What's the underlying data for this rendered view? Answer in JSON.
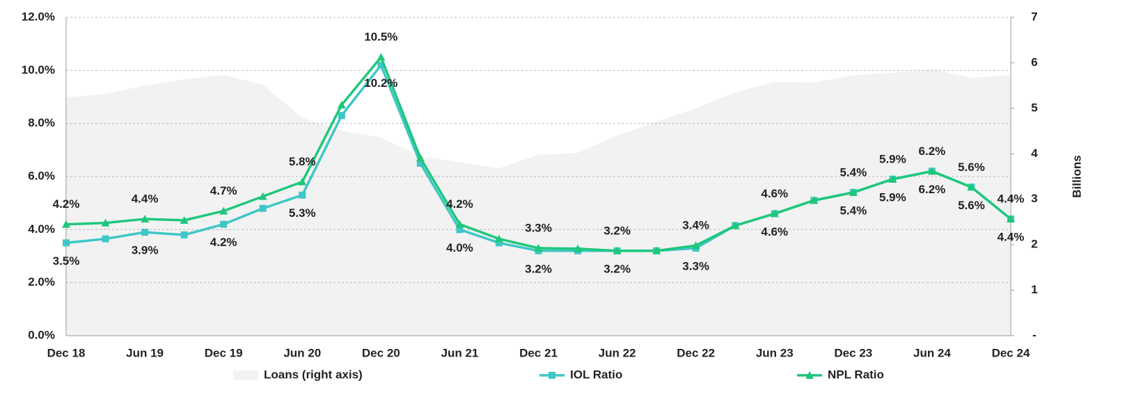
{
  "chart_data": {
    "type": "line",
    "categories": [
      "Dec 18",
      null,
      "Jun 19",
      null,
      "Dec 19",
      null,
      "Jun 20",
      null,
      "Dec 20",
      null,
      "Jun 21",
      null,
      "Dec 21",
      null,
      "Jun 22",
      null,
      "Dec 22",
      null,
      "Jun 23",
      null,
      "Dec 23",
      null,
      "Jun 24",
      null,
      "Dec 24"
    ],
    "series": [
      {
        "name": "Loans (right axis)",
        "type": "area",
        "axis": "y2",
        "color": "#f2f2f2",
        "values": [
          5.24,
          5.32,
          5.5,
          5.64,
          5.73,
          5.52,
          4.79,
          4.51,
          4.36,
          3.94,
          3.82,
          3.68,
          3.98,
          4.02,
          4.4,
          4.71,
          5.0,
          5.35,
          5.58,
          5.57,
          5.73,
          5.78,
          5.86,
          5.67,
          5.73
        ]
      },
      {
        "name": "IOL Ratio",
        "marker": "square",
        "color": "#3fc6c6",
        "values": [
          3.5,
          3.65,
          3.9,
          3.8,
          4.2,
          4.8,
          5.3,
          8.3,
          10.2,
          6.5,
          4.0,
          3.5,
          3.2,
          3.2,
          3.2,
          3.2,
          3.3,
          4.15,
          4.6,
          5.1,
          5.4,
          5.9,
          6.2,
          5.6,
          4.4
        ],
        "value_labels": [
          "3.5%",
          null,
          "3.9%",
          null,
          "4.2%",
          null,
          "5.3%",
          null,
          "10.2%",
          null,
          "4.0%",
          null,
          "3.2%",
          null,
          "3.2%",
          null,
          "3.3%",
          null,
          "4.6%",
          null,
          "5.4%",
          "5.9%",
          "6.2%",
          "5.6%",
          "4.4%"
        ]
      },
      {
        "name": "NPL Ratio",
        "marker": "triangle",
        "color": "#1fc77c",
        "values": [
          4.2,
          4.25,
          4.4,
          4.35,
          4.7,
          5.25,
          5.8,
          8.7,
          10.5,
          6.7,
          4.2,
          3.65,
          3.3,
          3.28,
          3.2,
          3.2,
          3.4,
          4.15,
          4.6,
          5.1,
          5.4,
          5.9,
          6.2,
          5.6,
          4.4
        ],
        "value_labels": [
          "4.2%",
          null,
          "4.4%",
          null,
          "4.7%",
          null,
          "5.8%",
          null,
          "10.5%",
          null,
          "4.2%",
          null,
          "3.3%",
          null,
          "3.2%",
          null,
          "3.4%",
          null,
          "4.6%",
          null,
          "5.4%",
          "5.9%",
          "6.2%",
          "5.6%",
          "4.4%"
        ]
      }
    ],
    "ylim": [
      0,
      12
    ],
    "yticks": [
      {
        "value": 0,
        "label": "0.0%"
      },
      {
        "value": 2,
        "label": "2.0%"
      },
      {
        "value": 4,
        "label": "4.0%"
      },
      {
        "value": 6,
        "label": "6.0%"
      },
      {
        "value": 8,
        "label": "8.0%"
      },
      {
        "value": 10,
        "label": "10.0%"
      },
      {
        "value": 12,
        "label": "12.0%"
      }
    ],
    "y2lim": [
      0,
      7
    ],
    "y2ticks": [
      {
        "value": 0,
        "label": "-"
      },
      1,
      2,
      3,
      4,
      5,
      6,
      7
    ],
    "y2label": "Billions",
    "grid": true,
    "legend": "bottom"
  }
}
